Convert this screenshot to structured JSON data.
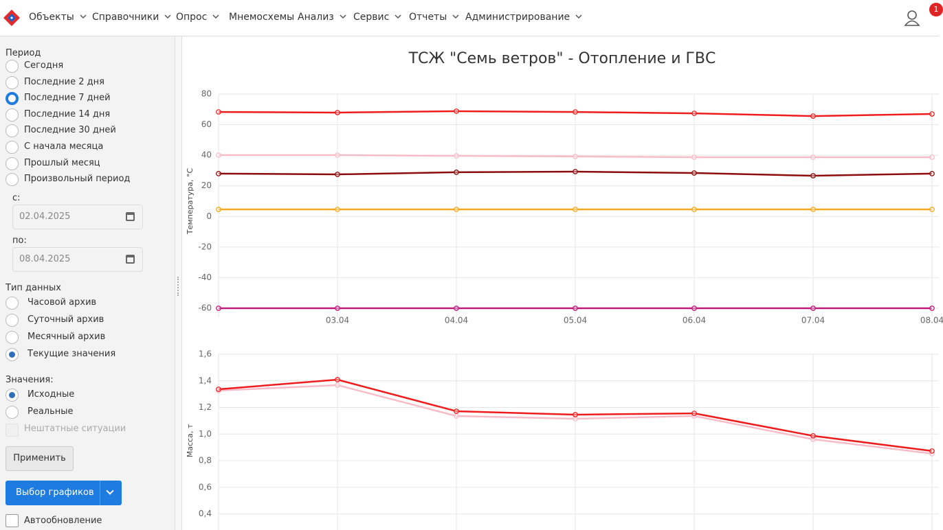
{
  "nav": {
    "items": [
      {
        "label": "Объекты",
        "dropdown": true
      },
      {
        "label": "Справочники",
        "dropdown": true
      },
      {
        "label": "Опрос",
        "dropdown": true
      },
      {
        "label": "Мнемосхемы",
        "dropdown": false
      },
      {
        "label": "Анализ",
        "dropdown": true
      },
      {
        "label": "Сервис",
        "dropdown": true
      },
      {
        "label": "Отчеты",
        "dropdown": true
      },
      {
        "label": "Администрирование",
        "dropdown": true
      }
    ],
    "badge": "1"
  },
  "sidebar": {
    "period_label": "Период",
    "periods": [
      "Сегодня",
      "Последние 2 дня",
      "Последние 7 дней",
      "Последние 14 дня",
      "Последние 30 дней",
      "С начала месяца",
      "Прошлый месяц",
      "Произвольный период"
    ],
    "period_selected": 2,
    "from_label": "с:",
    "from_date": "02.04.2025",
    "to_label": "по:",
    "to_date": "08.04.2025",
    "type_label": "Тип данных",
    "types": [
      "Часовой архив",
      "Суточный архив",
      "Месячный архив",
      "Текущие значения"
    ],
    "type_selected": 3,
    "values_label": "Значения:",
    "value_options": [
      "Исходные",
      "Реальные"
    ],
    "value_selected": 0,
    "incidents": "Нештатные ситуации",
    "apply": "Применить",
    "charts_button": "Выбор графиков",
    "autoupdate": "Автообновление"
  },
  "chart_data": [
    {
      "type": "line",
      "title": "ТСЖ \"Семь ветров\" - Отопление и ГВС",
      "y_label": "Температура, °С",
      "categories": [
        null,
        "03.04",
        "04.04",
        "05.04",
        "06.04",
        "07.04",
        "08.04"
      ],
      "ylim": [
        -60,
        80
      ],
      "yticks": [
        80,
        60,
        40,
        20,
        0,
        -20,
        -40,
        -60
      ],
      "grid": true,
      "series": [
        {
          "color": "#ee1c1c",
          "values": [
            68.3,
            67.9,
            68.8,
            68.3,
            67.4,
            65.6,
            67.0
          ]
        },
        {
          "color": "#f7bcc8",
          "values": [
            40.1,
            40.1,
            39.6,
            39.2,
            38.7,
            38.7,
            38.7
          ]
        },
        {
          "color": "#8e0b0b",
          "values": [
            28.0,
            27.5,
            28.9,
            29.3,
            28.4,
            26.6,
            28.0
          ]
        },
        {
          "color": "#f5a81e",
          "values": [
            4.6,
            4.6,
            4.6,
            4.6,
            4.6,
            4.6,
            4.6
          ]
        },
        {
          "color": "#c2187a",
          "values": [
            -60,
            -60,
            -60,
            -60,
            -60,
            -60,
            -60
          ]
        }
      ]
    },
    {
      "type": "line",
      "y_label": "Масса, т",
      "ylim": [
        0.3,
        1.6
      ],
      "yticks": [
        {
          "value": 1.6,
          "label": "1,6"
        },
        {
          "value": 1.4,
          "label": "1,4"
        },
        {
          "value": 1.2,
          "label": "1,2"
        },
        {
          "value": 1.0,
          "label": "1,0"
        },
        {
          "value": 0.8,
          "label": "0,8"
        },
        {
          "value": 0.6,
          "label": "0,6"
        },
        {
          "value": 0.4,
          "label": "0,4"
        }
      ],
      "grid": true,
      "series": [
        {
          "color": "#f7bcc8",
          "values": [
            1.327,
            1.368,
            1.136,
            1.115,
            1.136,
            0.961,
            0.853
          ]
        },
        {
          "color": "#ee1c1c",
          "values": [
            1.337,
            1.409,
            1.172,
            1.146,
            1.156,
            0.987,
            0.873
          ]
        }
      ]
    }
  ]
}
